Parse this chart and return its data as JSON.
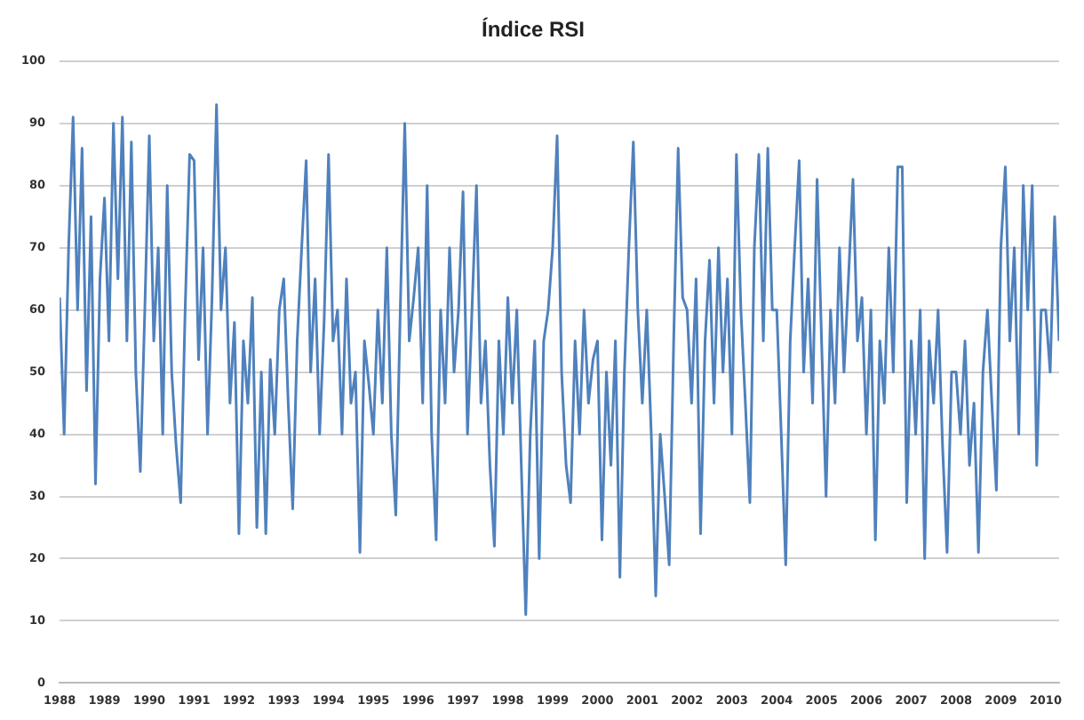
{
  "chart_data": {
    "type": "line",
    "title": "Índice RSI",
    "x": [
      1988.0,
      1988.1,
      1988.2,
      1988.3,
      1988.4,
      1988.5,
      1988.6,
      1988.7,
      1988.8,
      1988.9,
      1989.0,
      1989.1,
      1989.2,
      1989.3,
      1989.4,
      1989.5,
      1989.6,
      1989.7,
      1989.8,
      1989.9,
      1990.0,
      1990.1,
      1990.2,
      1990.3,
      1990.4,
      1990.5,
      1990.6,
      1990.7,
      1990.8,
      1990.9,
      1991.0,
      1991.1,
      1991.2,
      1991.3,
      1991.4,
      1991.5,
      1991.6,
      1991.7,
      1991.8,
      1991.9,
      1992.0,
      1992.1,
      1992.2,
      1992.3,
      1992.4,
      1992.5,
      1992.6,
      1992.7,
      1992.8,
      1992.9,
      1993.0,
      1993.1,
      1993.2,
      1993.3,
      1993.4,
      1993.5,
      1993.6,
      1993.7,
      1993.8,
      1993.9,
      1994.0,
      1994.1,
      1994.2,
      1994.3,
      1994.4,
      1994.5,
      1994.6,
      1994.7,
      1994.8,
      1994.9,
      1995.0,
      1995.1,
      1995.2,
      1995.3,
      1995.4,
      1995.5,
      1995.6,
      1995.7,
      1995.8,
      1995.9,
      1996.0,
      1996.1,
      1996.2,
      1996.3,
      1996.4,
      1996.5,
      1996.6,
      1996.7,
      1996.8,
      1996.9,
      1997.0,
      1997.1,
      1997.2,
      1997.3,
      1997.4,
      1997.5,
      1997.6,
      1997.7,
      1997.8,
      1997.9,
      1998.0,
      1998.1,
      1998.2,
      1998.3,
      1998.4,
      1998.5,
      1998.6,
      1998.7,
      1998.8,
      1998.9,
      1999.0,
      1999.1,
      1999.2,
      1999.3,
      1999.4,
      1999.5,
      1999.6,
      1999.7,
      1999.8,
      1999.9,
      2000.0,
      2000.1,
      2000.2,
      2000.3,
      2000.4,
      2000.5,
      2000.6,
      2000.7,
      2000.8,
      2000.9,
      2001.0,
      2001.1,
      2001.2,
      2001.3,
      2001.4,
      2001.5,
      2001.6,
      2001.7,
      2001.8,
      2001.9,
      2002.0,
      2002.1,
      2002.2,
      2002.3,
      2002.4,
      2002.5,
      2002.6,
      2002.7,
      2002.8,
      2002.9,
      2003.0,
      2003.1,
      2003.2,
      2003.3,
      2003.4,
      2003.5,
      2003.6,
      2003.7,
      2003.8,
      2003.9,
      2004.0,
      2004.1,
      2004.2,
      2004.3,
      2004.4,
      2004.5,
      2004.6,
      2004.7,
      2004.8,
      2004.9,
      2005.0,
      2005.1,
      2005.2,
      2005.3,
      2005.4,
      2005.5,
      2005.6,
      2005.7,
      2005.8,
      2005.9,
      2006.0,
      2006.1,
      2006.2,
      2006.3,
      2006.4,
      2006.5,
      2006.6,
      2006.7,
      2006.8,
      2006.9,
      2007.0,
      2007.1,
      2007.2,
      2007.3,
      2007.4,
      2007.5,
      2007.6,
      2007.7,
      2007.8,
      2007.9,
      2008.0,
      2008.1,
      2008.2,
      2008.3,
      2008.4,
      2008.5,
      2008.6,
      2008.7,
      2008.8,
      2008.9,
      2009.0,
      2009.1,
      2009.2,
      2009.3,
      2009.4,
      2009.5,
      2009.6,
      2009.7,
      2009.8,
      2009.9,
      2010.0,
      2010.1,
      2010.2,
      2010.3
    ],
    "series": [
      {
        "color": "#4f81bd",
        "values": [
          62,
          40,
          70,
          91,
          60,
          86,
          47,
          75,
          32,
          65,
          78,
          55,
          90,
          65,
          91,
          55,
          87,
          50,
          34,
          60,
          88,
          55,
          70,
          40,
          80,
          50,
          38,
          29,
          60,
          85,
          84,
          52,
          70,
          40,
          62,
          93,
          60,
          70,
          45,
          58,
          24,
          55,
          45,
          62,
          25,
          50,
          24,
          52,
          40,
          60,
          65,
          45,
          28,
          55,
          70,
          84,
          50,
          65,
          40,
          58,
          85,
          55,
          60,
          40,
          65,
          45,
          50,
          21,
          55,
          48,
          40,
          60,
          45,
          70,
          40,
          27,
          60,
          90,
          55,
          62,
          70,
          45,
          80,
          40,
          23,
          60,
          45,
          70,
          50,
          60,
          79,
          40,
          60,
          80,
          45,
          55,
          35,
          22,
          55,
          40,
          62,
          45,
          60,
          35,
          11,
          40,
          55,
          20,
          55,
          60,
          70,
          88,
          50,
          35,
          29,
          55,
          40,
          60,
          45,
          52,
          55,
          23,
          50,
          35,
          55,
          17,
          50,
          70,
          87,
          60,
          45,
          60,
          40,
          14,
          40,
          30,
          19,
          55,
          86,
          62,
          60,
          45,
          65,
          24,
          55,
          68,
          45,
          70,
          50,
          65,
          40,
          85,
          60,
          45,
          29,
          70,
          85,
          55,
          86,
          60,
          60,
          40,
          19,
          55,
          70,
          84,
          50,
          65,
          45,
          81,
          55,
          30,
          60,
          45,
          70,
          50,
          65,
          81,
          55,
          62,
          40,
          60,
          23,
          55,
          45,
          70,
          50,
          83,
          83,
          29,
          55,
          40,
          60,
          20,
          55,
          45,
          60,
          38,
          21,
          50,
          50,
          40,
          55,
          35,
          45,
          21,
          50,
          60,
          45,
          31,
          70,
          83,
          55,
          70,
          40,
          80,
          60,
          80,
          35,
          60,
          60,
          50,
          75,
          55
        ]
      }
    ],
    "xlim": [
      1988,
      2010.3
    ],
    "xticks": [
      1988,
      1989,
      1990,
      1991,
      1992,
      1993,
      1994,
      1995,
      1996,
      1997,
      1998,
      1999,
      2000,
      2001,
      2002,
      2003,
      2004,
      2005,
      2006,
      2007,
      2008,
      2009,
      2010
    ],
    "ylim": [
      0,
      100
    ],
    "yticks": [
      0,
      10,
      20,
      30,
      40,
      50,
      60,
      70,
      80,
      90,
      100
    ],
    "grid": "y",
    "legend": false,
    "marker": "none",
    "line_style": "solid"
  }
}
